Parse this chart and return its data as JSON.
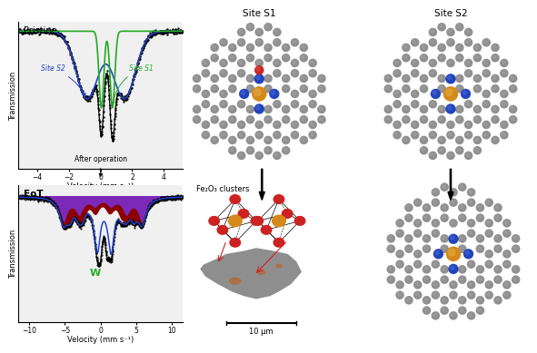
{
  "top_left_title": "Pristine",
  "bottom_left_title": "EoT",
  "arrow_label": "After operation",
  "fe2o3_label": "Fe₂O₃ clusters",
  "scale_label": "10 μm",
  "site_s1_label": "Site S1",
  "site_s2_label": "Site S2",
  "top_xlabel": "Velocity (mm s⁻¹)",
  "bot_xlabel": "Velocity (mm s⁻¹)",
  "ylabel": "Transmission",
  "gray_C": "#909090",
  "blue_N": "#2244bb",
  "orange_Fe": "#d4891a",
  "red_O": "#cc2222",
  "green_line": "#22aa22",
  "blue_line": "#2244cc",
  "purple_fill": "#7b2ab8",
  "darkred_fill": "#8b0000",
  "plot_bg": "#f0f0f0"
}
